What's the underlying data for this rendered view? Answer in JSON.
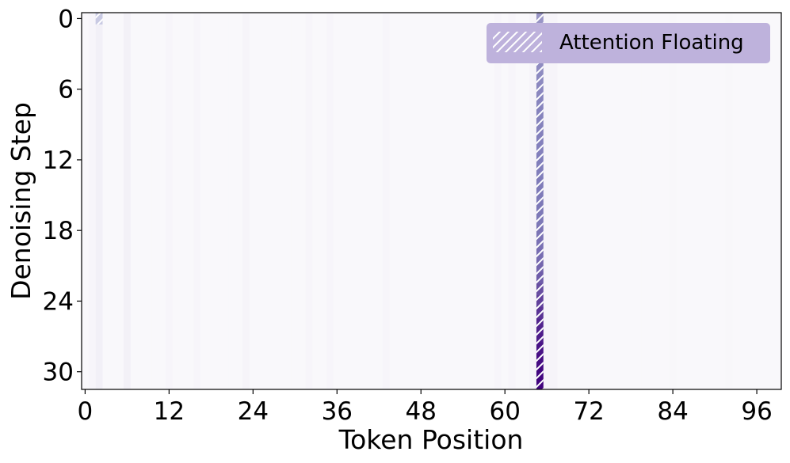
{
  "chart_data": {
    "type": "heatmap",
    "xlabel": "Token Position",
    "ylabel": "Denoising Step",
    "x_range": [
      0,
      100
    ],
    "y_range": [
      0,
      31
    ],
    "x_ticks": [
      0,
      12,
      24,
      36,
      48,
      60,
      72,
      84,
      96
    ],
    "y_ticks": [
      0,
      6,
      12,
      18,
      24,
      30
    ],
    "y_inverted": true,
    "colormap": "Purples",
    "value_range": [
      0,
      1
    ],
    "legend": {
      "label": "Attention Floating",
      "placement": "top-right",
      "hatch": "diagonal",
      "color": "#beb2dc"
    },
    "floating_token": {
      "position": 65,
      "intensity_by_step": [
        0.52,
        0.53,
        0.54,
        0.55,
        0.56,
        0.57,
        0.58,
        0.59,
        0.6,
        0.6,
        0.61,
        0.61,
        0.62,
        0.62,
        0.63,
        0.63,
        0.64,
        0.64,
        0.65,
        0.66,
        0.67,
        0.69,
        0.72,
        0.76,
        0.8,
        0.84,
        0.88,
        0.91,
        0.94,
        0.96,
        0.98,
        0.99
      ]
    },
    "first_token": {
      "position": 2,
      "intensity_step_0": 0.32
    },
    "elevated_columns": [
      {
        "position": 2,
        "intensity": 0.1
      },
      {
        "position": 6,
        "intensity": 0.09
      },
      {
        "position": 1,
        "intensity": 0.05
      },
      {
        "position": 12,
        "intensity": 0.05
      },
      {
        "position": 16,
        "intensity": 0.05
      },
      {
        "position": 23,
        "intensity": 0.06
      },
      {
        "position": 32,
        "intensity": 0.05
      },
      {
        "position": 35,
        "intensity": 0.05
      },
      {
        "position": 43,
        "intensity": 0.05
      },
      {
        "position": 59,
        "intensity": 0.05
      },
      {
        "position": 61,
        "intensity": 0.05
      },
      {
        "position": 64,
        "intensity": 0.06
      },
      {
        "position": 66,
        "intensity": 0.06
      },
      {
        "position": 67,
        "intensity": 0.06
      },
      {
        "position": 84,
        "intensity": 0.04
      },
      {
        "position": 92,
        "intensity": 0.04
      }
    ],
    "background_intensity": 0.03
  }
}
